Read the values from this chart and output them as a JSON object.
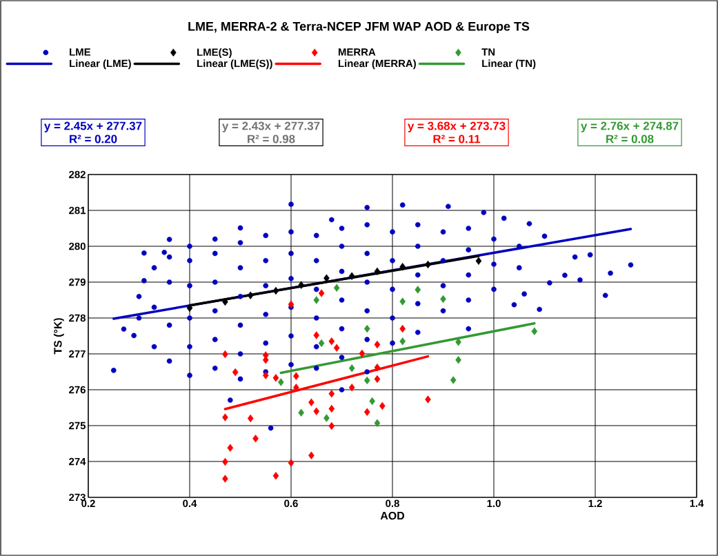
{
  "chart_data": {
    "type": "scatter",
    "title": "LME, MERRA-2 & Terra-NCEP JFM WAP AOD & Europe TS",
    "xlabel": "AOD",
    "ylabel": "TS (°K)",
    "xlim": [
      0.2,
      1.4
    ],
    "xticks": [
      0.2,
      0.4,
      0.6,
      0.8,
      {
        "value": 1.0,
        "label": "1.0"
      },
      1.2,
      1.4
    ],
    "ylim": [
      273,
      282
    ],
    "yticks": [
      273,
      274,
      275,
      276,
      277,
      278,
      279,
      280,
      281,
      282
    ],
    "grid": true,
    "legend": "top",
    "annotations": [
      "y = 2.45x + 277.37",
      "R² = 0.20",
      "y = 2.43x + 277.37",
      "R² = 0.98",
      "y = 3.68x + 273.73",
      "R² = 0.11",
      "y = 2.76x + 274.87",
      "R² = 0.08"
    ],
    "series": [
      {
        "name": "LME",
        "type": "scatter",
        "marker": "circle",
        "color": "#0000c0",
        "x": [
          0.6,
          0.75,
          0.82,
          0.5,
          0.36,
          0.31,
          0.35,
          0.31,
          0.29,
          0.27,
          0.25,
          0.68,
          0.91,
          0.98,
          1.02,
          1.07,
          1.1,
          1.19,
          1.16,
          1.27,
          1.23,
          1.22,
          1.17,
          1.14,
          1.09,
          1.06,
          1.04,
          1.11,
          0.56,
          0.48,
          0.95,
          0.7,
          0.3,
          0.3,
          0.33,
          0.33,
          0.33,
          0.36,
          0.36,
          0.36,
          0.36,
          0.4,
          0.4,
          0.4,
          0.4,
          0.4,
          0.4,
          0.45,
          0.45,
          0.45,
          0.45,
          0.45,
          0.45,
          0.5,
          0.5,
          0.5,
          0.5,
          0.5,
          0.5,
          0.55,
          0.55,
          0.55,
          0.55,
          0.55,
          0.55,
          0.6,
          0.6,
          0.6,
          0.6,
          0.6,
          0.6,
          0.65,
          0.65,
          0.65,
          0.65,
          0.65,
          0.65,
          0.7,
          0.7,
          0.7,
          0.7,
          0.7,
          0.7,
          0.75,
          0.75,
          0.75,
          0.75,
          0.75,
          0.75,
          0.8,
          0.8,
          0.8,
          0.8,
          0.8,
          0.85,
          0.85,
          0.85,
          0.85,
          0.85,
          0.9,
          0.9,
          0.9,
          0.9,
          0.95,
          0.95,
          0.95,
          0.95,
          1.0,
          1.0,
          1.0,
          1.05,
          1.05
        ],
        "values": [
          281.17,
          281.08,
          281.15,
          280.51,
          280.19,
          279.81,
          279.83,
          279.04,
          277.51,
          277.69,
          276.54,
          280.74,
          281.11,
          280.94,
          280.78,
          280.63,
          280.28,
          279.76,
          279.7,
          279.48,
          279.25,
          278.63,
          279.06,
          279.19,
          278.24,
          278.67,
          278.37,
          278.98,
          274.93,
          275.71,
          277.7,
          276.0,
          278.0,
          278.6,
          277.2,
          279.4,
          278.3,
          276.8,
          277.8,
          279.0,
          279.7,
          276.4,
          277.2,
          278.0,
          278.9,
          279.6,
          280.0,
          276.6,
          277.4,
          278.2,
          279.0,
          279.8,
          280.2,
          276.3,
          277.0,
          277.8,
          278.6,
          279.4,
          280.1,
          276.5,
          277.3,
          278.1,
          278.9,
          279.6,
          280.3,
          276.7,
          277.5,
          278.3,
          279.1,
          279.8,
          280.4,
          276.6,
          277.2,
          278.0,
          278.8,
          279.6,
          280.3,
          276.9,
          277.7,
          278.5,
          279.3,
          280.0,
          280.5,
          276.5,
          277.4,
          278.2,
          279.0,
          279.8,
          280.6,
          277.3,
          278.0,
          278.8,
          279.6,
          280.4,
          277.6,
          278.4,
          279.2,
          280.0,
          280.6,
          278.2,
          278.9,
          279.6,
          280.4,
          278.5,
          279.2,
          279.9,
          280.5,
          278.8,
          279.5,
          280.2,
          279.4,
          280.0
        ]
      },
      {
        "name": "LME(S)",
        "type": "scatter",
        "marker": "diamond",
        "color": "#000000",
        "x": [
          0.4,
          0.47,
          0.52,
          0.57,
          0.62,
          0.67,
          0.72,
          0.77,
          0.82,
          0.87,
          0.97
        ],
        "values": [
          278.28,
          278.45,
          278.63,
          278.76,
          278.92,
          279.11,
          279.17,
          279.3,
          279.43,
          279.49,
          279.59
        ]
      },
      {
        "name": "MERRA",
        "type": "scatter",
        "marker": "diamond",
        "color": "#ff0000",
        "x": [
          0.47,
          0.49,
          0.55,
          0.55,
          0.55,
          0.57,
          0.6,
          0.66,
          0.65,
          0.68,
          0.69,
          0.61,
          0.61,
          0.68,
          0.64,
          0.65,
          0.68,
          0.68,
          0.72,
          0.74,
          0.77,
          0.77,
          0.77,
          0.78,
          0.75,
          0.82,
          0.87,
          0.47,
          0.52,
          0.53,
          0.48,
          0.47,
          0.47,
          0.57,
          0.6,
          0.64
        ],
        "values": [
          276.99,
          276.49,
          276.96,
          276.83,
          276.4,
          276.33,
          278.38,
          278.69,
          277.52,
          277.35,
          277.17,
          276.38,
          276.06,
          275.89,
          275.65,
          275.4,
          275.47,
          274.99,
          276.06,
          277.01,
          277.26,
          276.62,
          276.3,
          275.55,
          275.38,
          277.7,
          275.73,
          275.23,
          275.2,
          274.64,
          274.38,
          273.99,
          273.52,
          273.6,
          273.96,
          274.17
        ]
      },
      {
        "name": "TN",
        "type": "scatter",
        "marker": "diamond",
        "color": "#339933",
        "x": [
          0.69,
          0.65,
          0.66,
          0.75,
          0.82,
          0.85,
          0.9,
          0.82,
          0.93,
          0.93,
          0.92,
          0.58,
          0.72,
          0.75,
          0.62,
          0.67,
          0.76,
          0.77,
          1.08
        ],
        "values": [
          278.84,
          278.5,
          277.3,
          277.7,
          278.46,
          278.79,
          278.53,
          277.35,
          277.33,
          276.83,
          276.27,
          276.21,
          276.6,
          276.26,
          275.36,
          275.21,
          275.68,
          275.07,
          277.63
        ]
      },
      {
        "name": "Linear (LME)",
        "type": "line",
        "marker": "none",
        "color": "#0000c0",
        "x": [
          0.25,
          1.27
        ],
        "values": [
          277.98,
          280.48
        ]
      },
      {
        "name": "Linear (LME(S))",
        "type": "line",
        "marker": "none",
        "color": "#000000",
        "x": [
          0.4,
          0.97
        ],
        "values": [
          278.35,
          279.73
        ]
      },
      {
        "name": "Linear (MERRA)",
        "type": "line",
        "marker": "none",
        "color": "#ff0000",
        "x": [
          0.47,
          0.87
        ],
        "values": [
          275.46,
          276.93
        ]
      },
      {
        "name": "Linear (TN)",
        "type": "line",
        "marker": "none",
        "color": "#339933",
        "x": [
          0.58,
          1.08
        ],
        "values": [
          276.47,
          277.85
        ]
      }
    ]
  }
}
